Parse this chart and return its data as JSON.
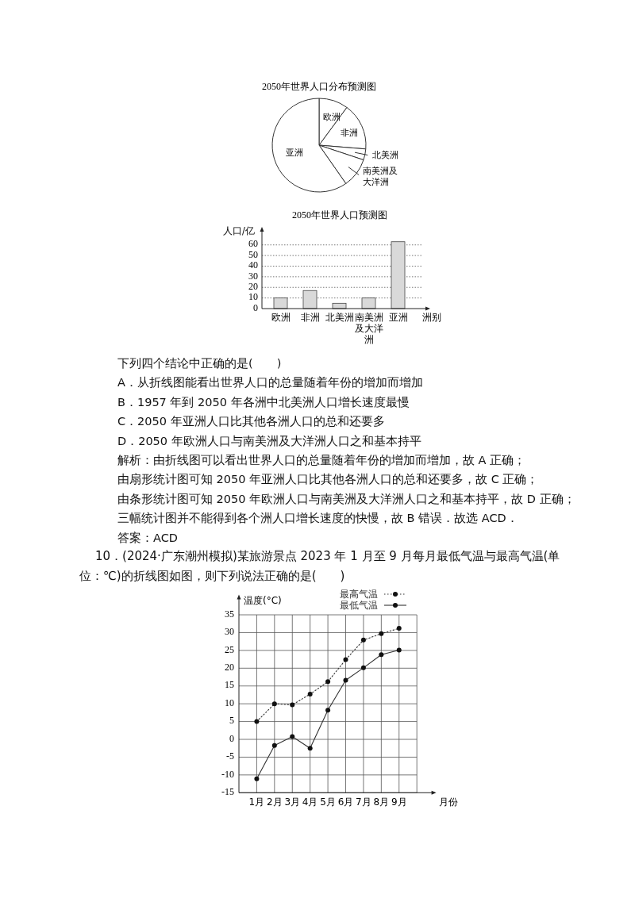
{
  "chart_data": [
    {
      "type": "pie",
      "title": "2050年世界人口分布预测图",
      "categories": [
        "欧洲",
        "非洲",
        "北美洲",
        "南美洲及大洋洲",
        "亚洲"
      ],
      "values": [
        10.1,
        16.2,
        3.8,
        10.2,
        59.7
      ],
      "colors": [
        "#ffffff",
        "#ffffff",
        "#ffffff",
        "#ffffff",
        "#ffffff"
      ]
    },
    {
      "type": "bar",
      "title": "2050年世界人口预测图",
      "ylabel": "人口/亿",
      "xlabel": "洲别",
      "categories": [
        "欧洲",
        "非洲",
        "北美洲",
        "南美洲及大洋洲",
        "亚洲"
      ],
      "values": [
        10,
        17,
        5,
        10,
        63
      ],
      "color": "#d9d9d9",
      "ylim": [
        0,
        74
      ],
      "yticks": [
        0,
        10,
        20,
        30,
        40,
        50,
        60
      ],
      "grid": "y",
      "annotations": [
        "下列四个结论中正确的是(　　)",
        "A．从折线图能看出世界人口的总量随着年份的增加而增加",
        "B．1957 年到 2050 年各洲中北美洲人口增长速度最慢",
        "C．2050 年亚洲人口比其他各洲人口的总和还要多",
        "D．2050 年欧洲人口与南美洲及大洋洲人口之和基本持平",
        "解析：由折线图可以看出世界人口的总量随着年份的增加而增加，故 A 正确；",
        "由扇形统计图可知 2050 年亚洲人口比其他各洲人口的总和还要多，故 C 正确；",
        "由条形统计图可知 2050 年欧洲人口与南美洲及大洋洲人口之和基本持平，故 D 正确；",
        "三幅统计图并不能得到各个洲人口增长速度的快慢，故 B 错误．故选 ACD．",
        "答案：ACD"
      ]
    },
    {
      "type": "line",
      "ylabel": "温度(°C)",
      "xlabel": "月份",
      "x": [
        1,
        2,
        3,
        4,
        5,
        6,
        7,
        8,
        9
      ],
      "xlim": [
        0,
        11
      ],
      "xticks": [
        {
          "value": 1,
          "label": "1月"
        },
        {
          "value": 2,
          "label": "2月"
        },
        {
          "value": 3,
          "label": "3月"
        },
        {
          "value": 4,
          "label": "4月"
        },
        {
          "value": 5,
          "label": "5月"
        },
        {
          "value": 6,
          "label": "6月"
        },
        {
          "value": 7,
          "label": "7月"
        },
        {
          "value": 8,
          "label": "8月"
        },
        {
          "value": 9,
          "label": "9月"
        },
        {
          "value": 10,
          "label": null
        }
      ],
      "ylim": [
        -15,
        40
      ],
      "yticks": [
        -15,
        -10,
        -5,
        0,
        5,
        10,
        15,
        20,
        25,
        30,
        35
      ],
      "grid": true,
      "legend": "top right",
      "marker": "circle",
      "series": [
        {
          "name": "最高气温",
          "color": "#333333",
          "line_style": "dotted",
          "values": [
            5,
            10,
            9.7,
            12.7,
            16.2,
            22.4,
            27.9,
            29.7,
            31.2
          ]
        },
        {
          "name": "最低气温",
          "color": "#333333",
          "line_style": "solid",
          "values": [
            -11.1,
            -1.7,
            0.8,
            -2.5,
            8.2,
            16.6,
            20.1,
            23.8,
            25.1
          ]
        }
      ],
      "annotations": [
        "10．(2024·广东潮州模拟)某旅游景点 2023 年 1 月至 9 月每月最低气温与最高气温(单位：℃)的折线图如图，则下列说法正确的是(　　)"
      ]
    }
  ]
}
